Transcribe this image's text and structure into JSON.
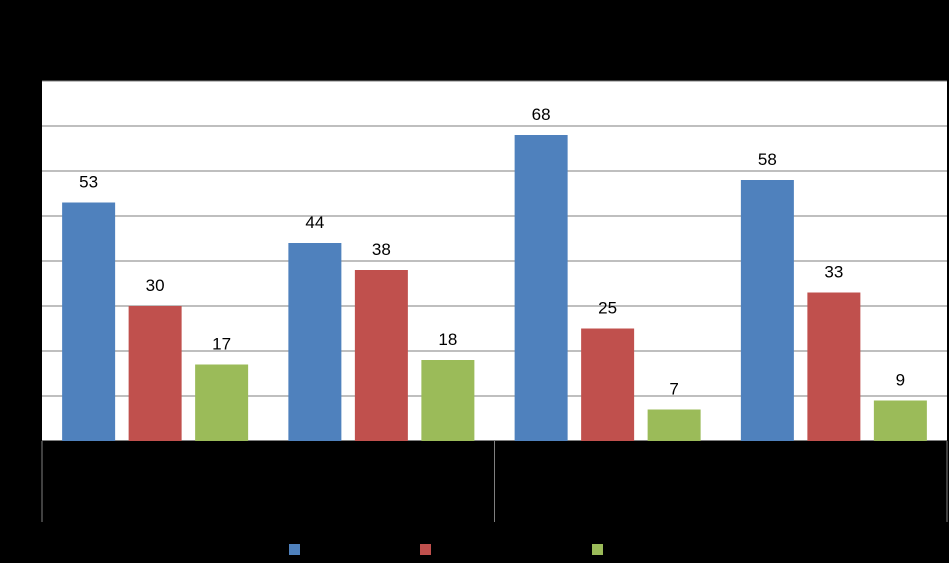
{
  "chart_data": {
    "type": "bar",
    "categories": [
      "",
      "",
      "",
      ""
    ],
    "series": [
      {
        "values": [
          53,
          44,
          68,
          58
        ],
        "color": "#4F81BD"
      },
      {
        "values": [
          30,
          38,
          25,
          33
        ],
        "color": "#C0504D"
      },
      {
        "values": [
          17,
          18,
          7,
          9
        ],
        "color": "#9BBB59"
      }
    ],
    "ylim": [
      0,
      80
    ],
    "grid": true,
    "legend_position": "bottom",
    "data_labels": true,
    "plot_background": "#FFFFFF",
    "page_background": "#000000",
    "gridline_color": "#7F7F7F"
  }
}
